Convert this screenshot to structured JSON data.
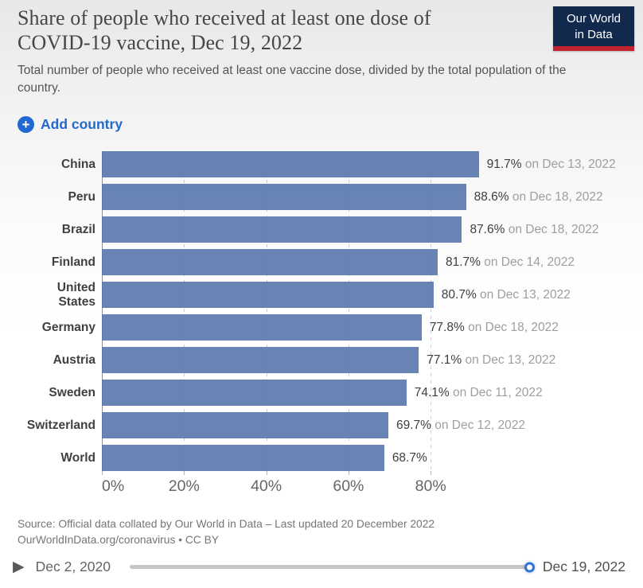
{
  "header": {
    "title_line1": "Share of people who received at least one dose of",
    "title_line2": "COVID-19 vaccine, Dec 19, 2022",
    "subtitle": "Total number of people who received at least one vaccine dose, divided by the total population of the country.",
    "logo": {
      "line1": "Our World",
      "line2": "in Data"
    }
  },
  "controls": {
    "add_country_label": "Add country",
    "plus_glyph": "+"
  },
  "chart_data": {
    "type": "bar",
    "orientation": "horizontal",
    "title": "Share of people who received at least one dose of COVID-19 vaccine, Dec 19, 2022",
    "categories": [
      "China",
      "Peru",
      "Brazil",
      "Finland",
      "United States",
      "Germany",
      "Austria",
      "Sweden",
      "Switzerland",
      "World"
    ],
    "values": [
      91.7,
      88.6,
      87.6,
      81.7,
      80.7,
      77.8,
      77.1,
      74.1,
      69.7,
      68.7
    ],
    "value_labels": [
      "91.7%",
      "88.6%",
      "87.6%",
      "81.7%",
      "80.7%",
      "77.8%",
      "77.1%",
      "74.1%",
      "69.7%",
      "68.7%"
    ],
    "date_notes": [
      "on Dec 13, 2022",
      "on Dec 18, 2022",
      "on Dec 18, 2022",
      "on Dec 14, 2022",
      "on Dec 13, 2022",
      "on Dec 18, 2022",
      "on Dec 13, 2022",
      "on Dec 11, 2022",
      "on Dec 12, 2022",
      ""
    ],
    "x_tick_labels": [
      "0%",
      "20%",
      "40%",
      "60%",
      "80%"
    ],
    "x_tick_values": [
      0,
      20,
      40,
      60,
      80
    ],
    "xlim": [
      0,
      127.4
    ],
    "grid": "dashed-vertical",
    "bar_color": "#6583b3",
    "accent_color": "#2268d1",
    "logo_navy": "#12294e",
    "logo_red": "#c0232e"
  },
  "footer": {
    "source_line1": "Source: Official data collated by Our World in Data – Last updated 20 December 2022",
    "source_line2": "OurWorldInData.org/coronavirus • CC BY"
  },
  "timeline": {
    "start": "Dec 2, 2020",
    "end": "Dec 19, 2022",
    "play_glyph": "▶"
  }
}
